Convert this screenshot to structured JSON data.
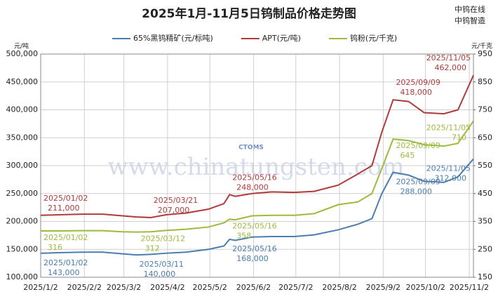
{
  "chart_data": {
    "type": "line",
    "title": "2025年1月-11月5日钨制品价格走势图",
    "watermarks": [
      "中钨在线",
      "中钨智造",
      "www.chinatungsten.com",
      "CTOMS"
    ],
    "y_label": "元/吨",
    "y2_label": "元/千克",
    "x": [
      "2025/1/2",
      "2025/1/15",
      "2025/2/1",
      "2025/2/15",
      "2025/3/1",
      "2025/3/11",
      "2025/3/21",
      "2025/4/1",
      "2025/4/15",
      "2025/5/1",
      "2025/5/12",
      "2025/5/16",
      "2025/5/20",
      "2025/6/1",
      "2025/6/15",
      "2025/7/1",
      "2025/7/15",
      "2025/8/1",
      "2025/8/15",
      "2025/8/25",
      "2025/9/1",
      "2025/9/9",
      "2025/9/20",
      "2025/10/1",
      "2025/10/15",
      "2025/10/25",
      "2025/11/5"
    ],
    "xlim": [
      "2025/1/2",
      "2025/11/5"
    ],
    "xticks": [
      "2025/1/2",
      "2025/2/2",
      "2025/3/2",
      "2025/4/2",
      "2025/5/2",
      "2025/6/2",
      "2025/7/2",
      "2025/8/2",
      "2025/9/2",
      "2025/10/2",
      "2025/11/2"
    ],
    "ylim": [
      100000,
      500000
    ],
    "yticks": [
      {
        "value": 100000,
        "label": "100,000"
      },
      {
        "value": 150000,
        "label": "150,000"
      },
      {
        "value": 200000,
        "label": "200,000"
      },
      {
        "value": 250000,
        "label": "250,000"
      },
      {
        "value": 300000,
        "label": "300,000"
      },
      {
        "value": 350000,
        "label": "350,000"
      },
      {
        "value": 400000,
        "label": "400,000"
      },
      {
        "value": 450000,
        "label": "450,000"
      },
      {
        "value": 500000,
        "label": "500,000"
      }
    ],
    "y2lim": [
      150,
      950
    ],
    "y2ticks": [
      150,
      250,
      350,
      450,
      550,
      650,
      750,
      850,
      950
    ],
    "grid": true,
    "series": [
      {
        "name": "65%黑钨精矿(元/标吨)",
        "color": "#4a7eb0",
        "values": [
          143000,
          144000,
          145000,
          145000,
          142000,
          140000,
          141000,
          143000,
          145000,
          150000,
          156000,
          168000,
          166000,
          172000,
          173000,
          173000,
          176000,
          185000,
          195000,
          205000,
          250000,
          288000,
          283000,
          272000,
          270000,
          280000,
          312000
        ],
        "annotations": [
          {
            "date": "2025/01/02",
            "value": 143000,
            "label": "143,000"
          },
          {
            "date": "2025/03/11",
            "value": 140000,
            "label": "140,000"
          },
          {
            "date": "2025/05/16",
            "value": 168000,
            "label": "168,000"
          },
          {
            "date": "2025/09/09",
            "value": 288000,
            "label": "288,000"
          },
          {
            "date": "2025/11/05",
            "value": 312000,
            "label": "312,000"
          }
        ]
      },
      {
        "name": "APT(元/吨)",
        "color": "#b23a3a",
        "values": [
          211000,
          212000,
          213000,
          213000,
          210000,
          208000,
          207000,
          212000,
          215000,
          222000,
          232000,
          248000,
          245000,
          250000,
          253000,
          252000,
          254000,
          265000,
          285000,
          300000,
          360000,
          418000,
          415000,
          395000,
          393000,
          400000,
          462000
        ],
        "annotations": [
          {
            "date": "2025/01/02",
            "value": 211000,
            "label": "211,000"
          },
          {
            "date": "2025/03/21",
            "value": 207000,
            "label": "207,000"
          },
          {
            "date": "2025/05/16",
            "value": 248000,
            "label": "248,000"
          },
          {
            "date": "2025/09/09",
            "value": 418000,
            "label": "418,000"
          },
          {
            "date": "2025/11/05",
            "value": 462000,
            "label": "462,000"
          }
        ]
      },
      {
        "name": "钨粉(元/千克)",
        "color": "#9bbb3c",
        "axis": "y2",
        "values": [
          316,
          316,
          317,
          317,
          313,
          312,
          313,
          318,
          322,
          330,
          345,
          358,
          356,
          370,
          372,
          372,
          378,
          410,
          420,
          450,
          540,
          645,
          640,
          625,
          620,
          630,
          710
        ],
        "annotations": [
          {
            "date": "2025/01/02",
            "value": 316,
            "label": "316"
          },
          {
            "date": "2025/03/12",
            "value": 312,
            "label": "312"
          },
          {
            "date": "2025/05/16",
            "value": 358,
            "label": "358"
          },
          {
            "date": "2025/09/09",
            "value": 645,
            "label": "645"
          },
          {
            "date": "2025/11/05",
            "value": 710,
            "label": "710"
          }
        ]
      }
    ]
  }
}
